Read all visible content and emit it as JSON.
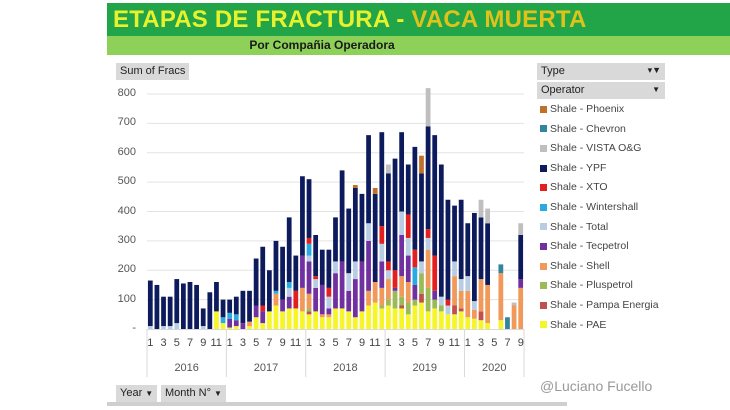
{
  "header": {
    "title_part1": "ETAPAS DE FRACTURA - ",
    "title_part2": "VACA MUERTA",
    "subtitle": "Por Compañia Operadora"
  },
  "buttons": {
    "sum_label": "Sum of Fracs",
    "type_label": "Type",
    "operator_label": "Operator",
    "year_label": "Year",
    "month_label": "Month N°"
  },
  "credit": "@Luciano Fucello",
  "colors": {
    "title_bg": "#21a548",
    "subtitle_bg": "#8ed159",
    "title_text": "#e8f22c"
  },
  "chart_data": {
    "type": "bar",
    "stacked": true,
    "title": "ETAPAS DE FRACTURA - VACA MUERTA",
    "ylabel": "Sum of Fracs",
    "ylim": [
      0,
      800
    ],
    "yticks": [
      "-",
      "100",
      "200",
      "300",
      "400",
      "500",
      "600",
      "700",
      "800"
    ],
    "grid": true,
    "legend_position": "right",
    "years": [
      "2016",
      "2017",
      "2018",
      "2019",
      "2020"
    ],
    "month_tick_labels": [
      "1",
      "3",
      "5",
      "7",
      "9",
      "11"
    ],
    "month_tick_labels_2020": [
      "1",
      "3",
      "5",
      "7",
      "9"
    ],
    "x_count": 57,
    "series": [
      {
        "name": "Shale - PAE",
        "color": "#f5f52a",
        "values": [
          0,
          0,
          0,
          0,
          0,
          0,
          0,
          0,
          0,
          0,
          60,
          20,
          5,
          10,
          0,
          10,
          40,
          20,
          60,
          80,
          60,
          70,
          70,
          60,
          50,
          60,
          40,
          40,
          70,
          70,
          60,
          40,
          60,
          80,
          90,
          70,
          80,
          70,
          70,
          50,
          80,
          90,
          60,
          70,
          60,
          50,
          50,
          60,
          40,
          35,
          30,
          20,
          0,
          30,
          0,
          0,
          0
        ]
      },
      {
        "name": "Shale - Pampa Energia",
        "color": "#c0504d",
        "values": [
          0,
          0,
          0,
          0,
          0,
          0,
          0,
          0,
          0,
          0,
          0,
          0,
          0,
          0,
          0,
          0,
          0,
          0,
          0,
          0,
          0,
          0,
          0,
          0,
          10,
          0,
          0,
          0,
          0,
          0,
          0,
          0,
          0,
          0,
          0,
          0,
          0,
          0,
          10,
          0,
          0,
          30,
          0,
          0,
          0,
          0,
          30,
          10,
          0,
          0,
          30,
          0,
          0,
          0,
          0,
          0,
          0
        ]
      },
      {
        "name": "Shale - Pluspetrol",
        "color": "#9bbb59",
        "values": [
          0,
          0,
          0,
          0,
          0,
          0,
          0,
          0,
          0,
          0,
          0,
          0,
          0,
          0,
          0,
          0,
          0,
          0,
          0,
          0,
          0,
          0,
          0,
          0,
          10,
          0,
          0,
          0,
          0,
          0,
          0,
          0,
          0,
          0,
          0,
          10,
          20,
          60,
          30,
          40,
          20,
          70,
          80,
          30,
          20,
          0,
          0,
          0,
          0,
          0,
          0,
          0,
          0,
          0,
          0,
          0,
          0
        ]
      },
      {
        "name": "Shale - Shell",
        "color": "#f0995a",
        "values": [
          0,
          0,
          0,
          0,
          0,
          0,
          0,
          0,
          0,
          0,
          0,
          0,
          0,
          0,
          0,
          15,
          0,
          0,
          0,
          40,
          0,
          0,
          0,
          80,
          50,
          0,
          10,
          10,
          0,
          0,
          0,
          0,
          0,
          50,
          70,
          60,
          70,
          0,
          70,
          70,
          0,
          0,
          130,
          0,
          0,
          0,
          100,
          60,
          90,
          30,
          110,
          130,
          0,
          160,
          0,
          80,
          140
        ]
      },
      {
        "name": "Shale - Tecpetrol",
        "color": "#7030a0",
        "values": [
          0,
          0,
          0,
          0,
          0,
          0,
          0,
          0,
          0,
          0,
          0,
          0,
          30,
          20,
          20,
          0,
          40,
          40,
          0,
          0,
          40,
          40,
          0,
          110,
          110,
          80,
          100,
          20,
          120,
          160,
          70,
          130,
          170,
          170,
          0,
          90,
          0,
          10,
          140,
          90,
          50,
          0,
          0,
          30,
          0,
          0,
          0,
          0,
          0,
          0,
          0,
          0,
          0,
          0,
          0,
          0,
          30
        ]
      },
      {
        "name": "Shale - Total",
        "color": "#b8cce4",
        "values": [
          10,
          0,
          10,
          10,
          20,
          0,
          0,
          0,
          10,
          0,
          0,
          0,
          0,
          0,
          0,
          0,
          0,
          0,
          0,
          0,
          0,
          30,
          0,
          0,
          20,
          30,
          0,
          40,
          40,
          0,
          60,
          60,
          0,
          60,
          0,
          60,
          30,
          0,
          80,
          60,
          0,
          40,
          40,
          0,
          30,
          30,
          50,
          40,
          50,
          30,
          0,
          0,
          0,
          0,
          0,
          0,
          0
        ]
      },
      {
        "name": "Shale - Wintershall",
        "color": "#29abe2",
        "values": [
          0,
          0,
          0,
          0,
          0,
          0,
          0,
          0,
          0,
          0,
          0,
          20,
          20,
          20,
          0,
          0,
          0,
          0,
          0,
          10,
          0,
          20,
          0,
          0,
          40,
          0,
          0,
          0,
          0,
          0,
          0,
          0,
          0,
          0,
          0,
          0,
          0,
          0,
          0,
          0,
          60,
          0,
          0,
          0,
          0,
          0,
          0,
          0,
          0,
          0,
          0,
          0,
          0,
          0,
          0,
          0,
          0
        ]
      },
      {
        "name": "Shale - XTO",
        "color": "#e32020",
        "values": [
          0,
          0,
          0,
          0,
          0,
          0,
          0,
          0,
          0,
          0,
          0,
          0,
          0,
          0,
          0,
          0,
          0,
          20,
          0,
          0,
          0,
          0,
          60,
          0,
          20,
          10,
          0,
          30,
          0,
          0,
          0,
          0,
          0,
          0,
          0,
          60,
          30,
          60,
          0,
          80,
          60,
          0,
          30,
          120,
          0,
          20,
          0,
          0,
          0,
          0,
          0,
          0,
          0,
          0,
          0,
          0,
          0
        ]
      },
      {
        "name": "Shale - YPF",
        "color": "#0d1b5c",
        "values": [
          155,
          150,
          100,
          100,
          150,
          155,
          160,
          150,
          60,
          125,
          100,
          60,
          45,
          60,
          110,
          105,
          160,
          200,
          140,
          170,
          180,
          220,
          120,
          270,
          200,
          140,
          120,
          130,
          150,
          310,
          220,
          250,
          230,
          300,
          300,
          320,
          300,
          380,
          270,
          170,
          350,
          300,
          350,
          410,
          450,
          340,
          190,
          270,
          180,
          300,
          210,
          210,
          0,
          0,
          0,
          0,
          150
        ]
      },
      {
        "name": "Shale - VISTA O&G",
        "color": "#bfbfbf",
        "values": [
          0,
          0,
          0,
          0,
          0,
          0,
          0,
          0,
          0,
          0,
          0,
          0,
          0,
          0,
          0,
          0,
          0,
          0,
          0,
          0,
          0,
          0,
          0,
          0,
          0,
          0,
          0,
          0,
          0,
          0,
          0,
          0,
          0,
          0,
          0,
          0,
          30,
          0,
          0,
          0,
          0,
          0,
          130,
          0,
          0,
          0,
          0,
          0,
          0,
          0,
          60,
          50,
          0,
          0,
          0,
          10,
          40
        ]
      },
      {
        "name": "Shale - Chevron",
        "color": "#31859c",
        "values": [
          0,
          0,
          0,
          0,
          0,
          0,
          0,
          0,
          0,
          0,
          0,
          0,
          0,
          0,
          0,
          0,
          0,
          0,
          0,
          0,
          0,
          0,
          0,
          0,
          0,
          0,
          0,
          0,
          0,
          0,
          0,
          0,
          0,
          0,
          0,
          0,
          0,
          0,
          0,
          0,
          0,
          0,
          0,
          0,
          0,
          0,
          0,
          0,
          0,
          0,
          0,
          0,
          0,
          30,
          40,
          0,
          0
        ]
      },
      {
        "name": "Shale - Phoenix",
        "color": "#c0702a",
        "values": [
          0,
          0,
          0,
          0,
          0,
          0,
          0,
          0,
          0,
          0,
          0,
          0,
          0,
          0,
          0,
          0,
          0,
          0,
          0,
          0,
          0,
          0,
          0,
          0,
          0,
          0,
          0,
          0,
          0,
          0,
          0,
          10,
          0,
          0,
          20,
          0,
          0,
          0,
          0,
          0,
          0,
          60,
          0,
          0,
          0,
          0,
          0,
          0,
          0,
          0,
          0,
          0,
          0,
          0,
          0,
          0,
          0
        ]
      }
    ],
    "legend_order": [
      "Shale - Phoenix",
      "Shale - Chevron",
      "Shale - VISTA O&G",
      "Shale - YPF",
      "Shale - XTO",
      "Shale - Wintershall",
      "Shale - Total",
      "Shale - Tecpetrol",
      "Shale - Shell",
      "Shale - Pluspetrol",
      "Shale - Pampa Energia",
      "Shale - PAE"
    ]
  }
}
